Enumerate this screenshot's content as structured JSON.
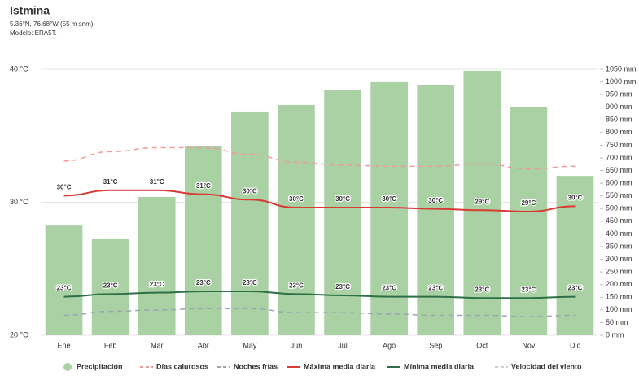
{
  "chart_data": {
    "type": "combo",
    "title": "Istmina",
    "subtitle": [
      "5.36°N, 76.68°W (55 m snm).",
      "Modelo: ERA5T."
    ],
    "categories": [
      "Ene",
      "Feb",
      "Mar",
      "Abr",
      "May",
      "Jun",
      "Jul",
      "Ago",
      "Sep",
      "Oct",
      "Nov",
      "Dic"
    ],
    "ylim": [
      20,
      40
    ],
    "yticks": [
      {
        "value": 20,
        "label": "20 °C"
      },
      {
        "value": 30,
        "label": "30 °C"
      },
      {
        "value": 40,
        "label": "40 °C"
      }
    ],
    "y2lim": [
      0,
      1050
    ],
    "y2ticks": [
      {
        "value": 0,
        "label": "0 mm"
      },
      {
        "value": 50,
        "label": "50 mm"
      },
      {
        "value": 100,
        "label": "100 mm"
      },
      {
        "value": 150,
        "label": "150 mm"
      },
      {
        "value": 200,
        "label": "200 mm"
      },
      {
        "value": 250,
        "label": "250 mm"
      },
      {
        "value": 300,
        "label": "300 mm"
      },
      {
        "value": 350,
        "label": "350 mm"
      },
      {
        "value": 400,
        "label": "400 mm"
      },
      {
        "value": 450,
        "label": "450 mm"
      },
      {
        "value": 500,
        "label": "500 mm"
      },
      {
        "value": 550,
        "label": "550 mm"
      },
      {
        "value": 600,
        "label": "600 mm"
      },
      {
        "value": 650,
        "label": "650 mm"
      },
      {
        "value": 700,
        "label": "700 mm"
      },
      {
        "value": 750,
        "label": "750 mm"
      },
      {
        "value": 800,
        "label": "800 mm"
      },
      {
        "value": 850,
        "label": "850 mm"
      },
      {
        "value": 900,
        "label": "900 mm"
      },
      {
        "value": 950,
        "label": "950 mm"
      },
      {
        "value": 1000,
        "label": "1000 mm"
      },
      {
        "value": 1050,
        "label": "1050 mm"
      }
    ],
    "grid": true,
    "series": [
      {
        "name": "Precipitación",
        "type": "bar",
        "axis": "y2",
        "color": "#a9d1a3",
        "values": [
          433,
          379,
          546,
          748,
          880,
          909,
          970,
          999,
          986,
          1044,
          902,
          629
        ]
      },
      {
        "name": "Días calurosos",
        "type": "line",
        "dashed": true,
        "color": "#f19a9a",
        "values": [
          33.1,
          33.8,
          34.1,
          34.1,
          33.6,
          33.0,
          32.8,
          32.7,
          32.7,
          32.9,
          32.5,
          32.7
        ]
      },
      {
        "name": "Noches frías",
        "type": "line",
        "dashed": true,
        "color": "#9aa6b0",
        "values": [
          21.5,
          21.8,
          21.9,
          22.0,
          22.0,
          21.7,
          21.7,
          21.6,
          21.5,
          21.5,
          21.4,
          21.5
        ]
      },
      {
        "name": "Máxima media diaria",
        "type": "line",
        "color": "#d83a34",
        "values": [
          30.5,
          30.9,
          30.9,
          30.6,
          30.2,
          29.6,
          29.6,
          29.6,
          29.5,
          29.4,
          29.3,
          29.7
        ],
        "value_labels": [
          "30°C",
          "31°C",
          "31°C",
          "31°C",
          "30°C",
          "30°C",
          "30°C",
          "30°C",
          "30°C",
          "29°C",
          "29°C",
          "30°C"
        ]
      },
      {
        "name": "Mínima media diaria",
        "type": "line",
        "color": "#2f6f45",
        "values": [
          22.9,
          23.1,
          23.2,
          23.3,
          23.3,
          23.1,
          23.0,
          22.9,
          22.9,
          22.8,
          22.8,
          22.9
        ],
        "value_labels": [
          "23°C",
          "23°C",
          "23°C",
          "23°C",
          "23°C",
          "23°C",
          "23°C",
          "23°C",
          "23°C",
          "23°C",
          "23°C",
          "23°C"
        ]
      },
      {
        "name": "Velocidad del viento",
        "type": "line",
        "dashed": true,
        "disabled": true,
        "color": "#cfcfcf"
      }
    ]
  }
}
